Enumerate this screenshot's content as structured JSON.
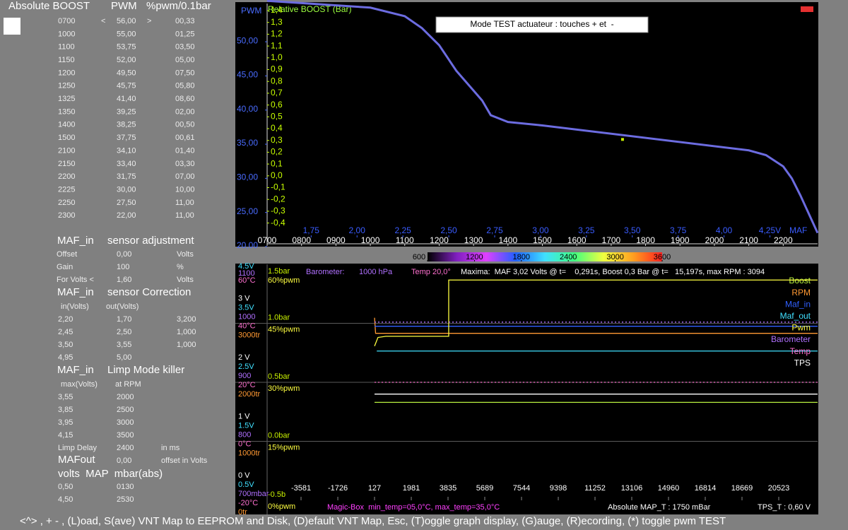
{
  "left_panel": {
    "header": [
      "Absolute BOOST",
      "PWM",
      "%pwm/0.1bar"
    ],
    "table": {
      "arrows": [
        "<",
        ">"
      ],
      "rows": [
        [
          "0700",
          "56,00",
          "00,33"
        ],
        [
          "1000",
          "55,00",
          "01,25"
        ],
        [
          "1100",
          "53,75",
          "03,50"
        ],
        [
          "1150",
          "52,00",
          "05,00"
        ],
        [
          "1200",
          "49,50",
          "07,50"
        ],
        [
          "1250",
          "45,75",
          "05,80"
        ],
        [
          "1325",
          "41,40",
          "08,60"
        ],
        [
          "1350",
          "39,25",
          "02,00"
        ],
        [
          "1400",
          "38,25",
          "00,50"
        ],
        [
          "1500",
          "37,75",
          "00,61"
        ],
        [
          "2100",
          "34,10",
          "01,40"
        ],
        [
          "2150",
          "33,40",
          "03,30"
        ],
        [
          "2200",
          "31,75",
          "07,00"
        ],
        [
          "2225",
          "30,00",
          "10,00"
        ],
        [
          "2250",
          "27,50",
          "11,00"
        ],
        [
          "2300",
          "22,00",
          "11,00"
        ]
      ]
    },
    "adjustment": {
      "title": [
        "MAF_in",
        "sensor adjustment"
      ],
      "rows": [
        [
          "Offset",
          "0,00",
          "Volts"
        ],
        [
          "Gain",
          "100",
          "%"
        ],
        [
          "For Volts <",
          "1,60",
          "Volts"
        ]
      ]
    },
    "correction": {
      "title": [
        "MAF_in",
        "sensor Correction"
      ],
      "columns": [
        "in(Volts)",
        "out(Volts)"
      ],
      "rows": [
        [
          "2,20",
          "1,70",
          "3,200"
        ],
        [
          "2,45",
          "2,50",
          "1,000"
        ],
        [
          "3,50",
          "3,55",
          "1,000"
        ],
        [
          "4,95",
          "5,00"
        ]
      ]
    },
    "limp": {
      "title": [
        "MAF_in",
        "Limp Mode killer"
      ],
      "columns": [
        "max(Volts)",
        "at RPM"
      ],
      "rows": [
        [
          "3,55",
          "2000"
        ],
        [
          "3,85",
          "2500"
        ],
        [
          "3,95",
          "3000"
        ],
        [
          "4,15",
          "3500"
        ]
      ],
      "delay": [
        "Limp Delay",
        "2400",
        "in ms"
      ]
    },
    "mafout": {
      "title": "MAFout",
      "offset": [
        "0,00",
        "offset in Volts"
      ],
      "map_title": "volts  MAP  mbar(abs)",
      "rows": [
        [
          "0,50",
          "0130"
        ],
        [
          "4,50",
          "2530"
        ]
      ]
    }
  },
  "top_chart": {
    "type": "line",
    "y_label": "PWM",
    "y2_label": "Relative BOOST (Bar)",
    "x2_label": "MAF",
    "mode_box": "Mode TEST actuateur : touches + et  -",
    "indicator_color": "#e53030",
    "color": "#6c6ce0",
    "x": [
      700,
      1000,
      1100,
      1150,
      1200,
      1250,
      1325,
      1350,
      1400,
      1500,
      2100,
      2150,
      2200,
      2225,
      2250,
      2300
    ],
    "values": [
      56,
      55,
      53.75,
      52,
      49.5,
      45.75,
      41.4,
      39.25,
      38.25,
      37.75,
      34.1,
      33.4,
      31.75,
      30,
      27.5,
      22
    ],
    "marker": {
      "x": 1733,
      "y": 35.7,
      "color": "#c8f000"
    },
    "xlim": [
      700,
      2300
    ],
    "xticks": [
      {
        "value": 700,
        "label": "0700"
      },
      {
        "value": 800,
        "label": "0800"
      },
      {
        "value": 900,
        "label": "0900"
      },
      1000,
      1100,
      1200,
      1300,
      1400,
      1500,
      1600,
      1700,
      1800,
      1900,
      2000,
      2100,
      2200
    ],
    "ylim": [
      20,
      55.6
    ],
    "yticks": [
      {
        "value": 20,
        "label": "20,00"
      },
      {
        "value": 25,
        "label": "25,00"
      },
      {
        "value": 30,
        "label": "30,00"
      },
      {
        "value": 35,
        "label": "35,00"
      },
      {
        "value": 40,
        "label": "40,00"
      },
      {
        "value": 45,
        "label": "45,00"
      },
      {
        "value": 50,
        "label": "50,00"
      }
    ],
    "x2lim": [
      1.51,
      4.51
    ],
    "x2ticks": [
      {
        "value": 1.75,
        "label": "1,75"
      },
      {
        "value": 2,
        "label": "2,00"
      },
      {
        "value": 2.25,
        "label": "2,25"
      },
      {
        "value": 2.5,
        "label": "2,50"
      },
      {
        "value": 2.75,
        "label": "2,75"
      },
      {
        "value": 3,
        "label": "3,00"
      },
      {
        "value": 3.25,
        "label": "3,25"
      },
      {
        "value": 3.5,
        "label": "3,50"
      },
      {
        "value": 3.75,
        "label": "3,75"
      },
      {
        "value": 4,
        "label": "4,00"
      },
      {
        "value": 4.25,
        "label": "4,25V"
      }
    ],
    "y2lim": [
      -0.6,
      1.46
    ],
    "y2ticks": [
      {
        "value": 1.4,
        "label": "1,4"
      },
      {
        "value": 1.3,
        "label": "1,3"
      },
      {
        "value": 1.2,
        "label": "1,2"
      },
      {
        "value": 1.1,
        "label": "1,1"
      },
      {
        "value": 1.0,
        "label": "1,0"
      },
      {
        "value": 0.9,
        "label": "0,9"
      },
      {
        "value": 0.8,
        "label": "0,8"
      },
      {
        "value": 0.7,
        "label": "0,7"
      },
      {
        "value": 0.6,
        "label": "0,6"
      },
      {
        "value": 0.5,
        "label": "0,5"
      },
      {
        "value": 0.4,
        "label": "0,4"
      },
      {
        "value": 0.3,
        "label": "0,3"
      },
      {
        "value": 0.2,
        "label": "0,2"
      },
      {
        "value": 0.1,
        "label": "0,1"
      },
      {
        "value": 0,
        "label": "0,0"
      },
      {
        "value": -0.1,
        "label": "-0,1"
      },
      {
        "value": -0.2,
        "label": "-0,2"
      },
      {
        "value": -0.3,
        "label": "-0,3"
      },
      {
        "value": -0.4,
        "label": "-0,4"
      }
    ]
  },
  "colorbar": {
    "lim": [
      600,
      3600
    ],
    "ticks": [
      600,
      1200,
      1800,
      2400,
      3000,
      3600
    ],
    "colors": [
      "#000000",
      "#8020c0",
      "#e040ff",
      "#2060ff",
      "#40e0ff",
      "#40ff80",
      "#f0ff40",
      "#ffa020",
      "#ff2020"
    ]
  },
  "lower_chart": {
    "info": {
      "barometer_label": "Barometer:",
      "barometer": "1000 hPa",
      "temp": "Temp 20,0°",
      "maxima": "Maxima:  MAF 3,02 Volts @ t=    0,291s, Boost 0,3 Bar @ t=   15,197s, max RPM : 3094"
    },
    "levels": [
      {
        "left": [
          "4.5V",
          "1100",
          "60°C"
        ],
        "right": [
          "1.5bar",
          "60%pwm"
        ]
      },
      {
        "left": [
          "3 V",
          "3.5V",
          "1000",
          "40°C",
          "3000tr"
        ],
        "right": [
          "1.0bar",
          "45%pwm"
        ]
      },
      {
        "left": [
          "2 V",
          "2.5V",
          "900",
          "20°C",
          "2000tr"
        ],
        "right": [
          "0.5bar",
          "30%pwm"
        ]
      },
      {
        "left": [
          "1 V",
          "1.5V",
          "800",
          "0°C",
          "1000tr"
        ],
        "right": [
          "0.0bar",
          "15%pwm"
        ]
      },
      {
        "left": [
          "0 V",
          "0.5V",
          "700mbar",
          "-20°C",
          "0tr"
        ],
        "right": [
          "-0.5b",
          "0%pwm"
        ]
      }
    ],
    "left_label_colors": [
      "#ffffff",
      "#40e0ff",
      "#b070ff",
      "#ff70d0",
      "#ff9933"
    ],
    "right_label_colors": [
      "#c8f000",
      "#ffff40"
    ],
    "xlim": [
      -5293,
      22484
    ],
    "xticks": [
      -3581,
      -1726,
      127,
      1981,
      3835,
      5689,
      7544,
      9398,
      11252,
      13106,
      14960,
      16814,
      18669,
      20523
    ],
    "series": [
      {
        "name": "Boost",
        "color": "#b8f040",
        "ylim": [
          -0.5,
          1.5
        ],
        "x": [
          127,
          22484
        ],
        "values": [
          0.33,
          0.33
        ]
      },
      {
        "name": "RPM",
        "color": "#ff9933",
        "ylim": [
          0,
          4000
        ],
        "x": [
          127,
          180,
          22484
        ],
        "values": [
          3094,
          2830,
          2830
        ]
      },
      {
        "name": "Maf_in",
        "color": "#3060ff",
        "ylim": [
          0,
          4
        ],
        "x": [
          127,
          22484
        ],
        "values": [
          2.95,
          2.95
        ]
      },
      {
        "name": "Maf_out",
        "color": "#40e0ff",
        "ylim": [
          0.5,
          4.5
        ],
        "x": [
          240,
          22484
        ],
        "values": [
          3.03,
          3.03
        ]
      },
      {
        "name": "Pwm",
        "color": "#ffff40",
        "ylim": [
          0,
          60
        ],
        "x": [
          127,
          300,
          700,
          3870,
          3870,
          22484
        ],
        "values": [
          39.2,
          41.4,
          41.7,
          41.7,
          56,
          56
        ]
      },
      {
        "name": "Barometer",
        "color": "#b070ff",
        "ylim": [
          700,
          1100
        ],
        "style": "dotted",
        "x": [
          127,
          22484
        ],
        "values": [
          1002,
          1002
        ]
      },
      {
        "name": "Temp",
        "color": "#ff70d0",
        "ylim": [
          -20,
          60
        ],
        "style": "dotted",
        "x": [
          127,
          22484
        ],
        "values": [
          20,
          20
        ]
      },
      {
        "name": "TPS",
        "color": "#ffffff",
        "ylim": [
          0,
          4
        ],
        "x": [
          127,
          22484
        ],
        "values": [
          1.8,
          1.8
        ]
      }
    ],
    "status": {
      "magic": "Magic-Box  min_temp=05,0°C, max_temp=35,0°C",
      "map": "Absolute MAP_T : 1750 mBar",
      "tps": "TPS_T : 0,60 V"
    }
  },
  "footer": "<^> , + - , (L)oad, S(ave) VNT Map to EEPROM and Disk, (D)efault VNT Map, Esc, (T)oggle graph display, (G)auge, (R)ecording, (*) toggle pwm TEST"
}
